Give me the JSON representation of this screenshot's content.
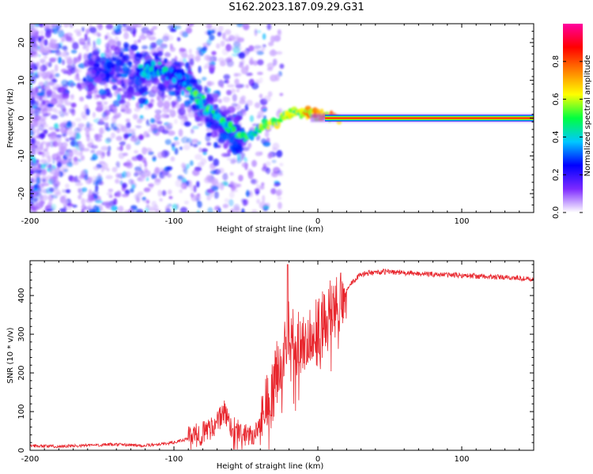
{
  "title": "S162.2023.187.09.29.G31",
  "chart_data": [
    {
      "type": "heatmap",
      "xlabel": "Height of straight line (km)",
      "ylabel": "Frequency (Hz)",
      "xlim": [
        -200,
        150
      ],
      "ylim": [
        -25,
        25
      ],
      "x_ticks": [
        -200,
        -100,
        0,
        100
      ],
      "x_tick_labels": [
        "-200",
        "-100",
        "0",
        "100"
      ],
      "y_ticks": [
        -20,
        -10,
        0,
        10,
        20
      ],
      "y_tick_labels": [
        "-20",
        "-10",
        "0",
        "10",
        "20"
      ],
      "ridge": {
        "x": [
          -125,
          -110,
          -100,
          -90,
          -80,
          -70,
          -60,
          -50,
          -40,
          -30,
          -20,
          -10,
          0,
          10,
          20,
          150
        ],
        "frequency": [
          12,
          13,
          11,
          8,
          4,
          0,
          -4,
          -5,
          -3,
          -1,
          1.5,
          1.5,
          1,
          0.3,
          0,
          0
        ]
      },
      "colorbar": {
        "label": "Normalized spectral amplitude",
        "range": [
          0,
          1
        ],
        "ticks": [
          0.0,
          0.2,
          0.4,
          0.6,
          0.8
        ],
        "tick_labels": [
          "0.0",
          "0.2",
          "0.4",
          "0.6",
          "0.8"
        ],
        "colors": [
          "#ffffff",
          "#7d2aff",
          "#0000ff",
          "#00c8ff",
          "#00ff40",
          "#ffff00",
          "#ff8000",
          "#ff0000",
          "#ff00a0"
        ]
      },
      "grid": false
    },
    {
      "type": "line",
      "xlabel": "Height of straight line (km)",
      "ylabel": "SNR (10 * v/v)",
      "xlim": [
        -200,
        150
      ],
      "ylim": [
        0,
        490
      ],
      "x_ticks": [
        -200,
        -100,
        0,
        100
      ],
      "x_tick_labels": [
        "-200",
        "-100",
        "0",
        "100"
      ],
      "y_ticks": [
        0,
        100,
        200,
        300,
        400
      ],
      "y_tick_labels": [
        "0",
        "100",
        "200",
        "300",
        "400"
      ],
      "series": [
        {
          "color": "#e8262d",
          "x": [
            -200,
            -180,
            -160,
            -140,
            -120,
            -100,
            -90,
            -80,
            -70,
            -65,
            -60,
            -55,
            -50,
            -45,
            -40,
            -35,
            -30,
            -25,
            -22,
            -20,
            -15,
            -10,
            -5,
            0,
            5,
            10,
            20,
            30,
            40,
            50,
            60,
            80,
            100,
            120,
            140,
            150
          ],
          "y": [
            12,
            10,
            13,
            15,
            12,
            20,
            30,
            45,
            70,
            100,
            60,
            55,
            40,
            45,
            60,
            110,
            180,
            230,
            280,
            320,
            260,
            290,
            300,
            310,
            330,
            360,
            420,
            455,
            460,
            462,
            458,
            455,
            452,
            448,
            445,
            440
          ]
        }
      ],
      "grid": false
    }
  ]
}
